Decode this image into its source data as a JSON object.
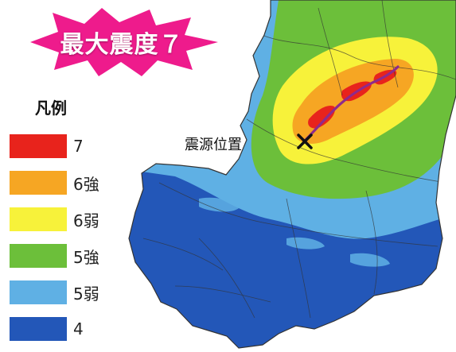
{
  "title": "最大震度７",
  "legend": {
    "title": "凡例",
    "items": [
      {
        "label": "7",
        "color": "#e8231c"
      },
      {
        "label": "6強",
        "color": "#f6a623"
      },
      {
        "label": "6弱",
        "color": "#f7f23a"
      },
      {
        "label": "5強",
        "color": "#6cbf3a"
      },
      {
        "label": "5弱",
        "color": "#5fb0e4"
      },
      {
        "label": "4",
        "color": "#2357b8"
      }
    ]
  },
  "epicenter": {
    "label": "震源位置",
    "icon": "x-mark-icon"
  },
  "colors": {
    "title_burst": "#ee1b8c",
    "fault_line": "#8e2a8c",
    "boundary": "#333333"
  }
}
